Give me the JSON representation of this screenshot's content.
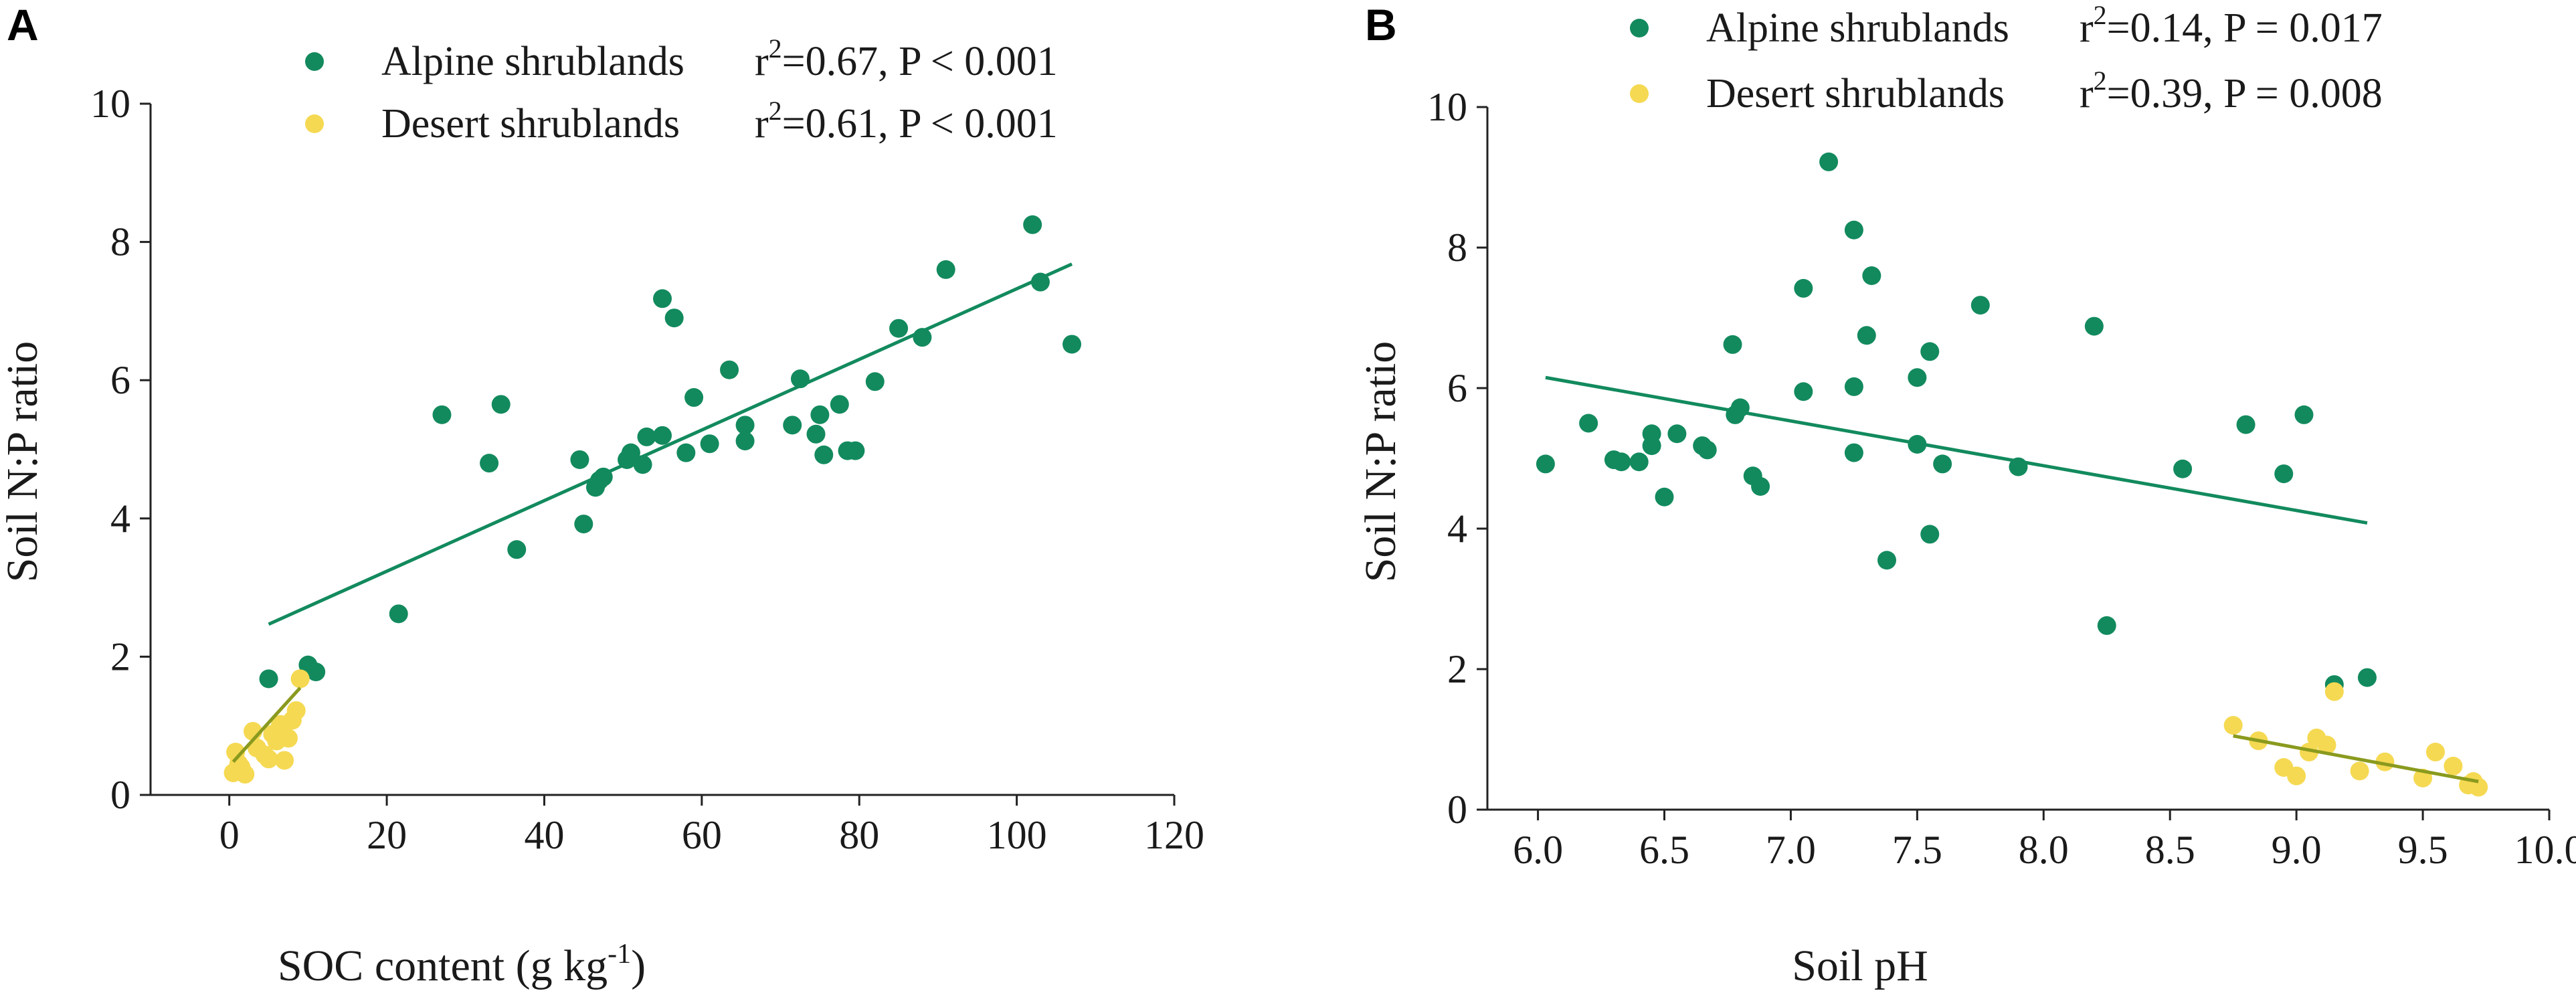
{
  "colors": {
    "alpine": "#128a5e",
    "desert": "#f5d952",
    "desert_fit": "#8a9a1e",
    "axis": "#222222"
  },
  "chart_data": [
    {
      "panel": "A",
      "type": "scatter",
      "xlabel": "SOC content (g kg",
      "xlabel_sup": "-1",
      "xlabel_suffix": ")",
      "ylabel": "Soil N:P ratio",
      "xlim": [
        -10,
        120
      ],
      "ylim": [
        0,
        10
      ],
      "xticks": [
        0,
        20,
        40,
        60,
        80,
        100,
        120
      ],
      "yticks": [
        0,
        2,
        4,
        6,
        8,
        10
      ],
      "x_tick_labels": [
        "0",
        "20",
        "40",
        "60",
        "80",
        "100",
        "120"
      ],
      "y_tick_labels": [
        "0",
        "2",
        "4",
        "6",
        "8",
        "10"
      ],
      "series": [
        {
          "name": "Alpine shrublands",
          "stat": "r²=0.67, P < 0.001",
          "stat_prefix": "r",
          "stat_sup": "2",
          "stat_rest": "=0.67, P < 0.001",
          "color_key": "alpine",
          "points": [
            [
              5,
              1.68
            ],
            [
              10,
              1.88
            ],
            [
              11,
              1.78
            ],
            [
              21.5,
              2.62
            ],
            [
              27,
              5.5
            ],
            [
              33,
              4.8
            ],
            [
              34.5,
              5.65
            ],
            [
              36.5,
              3.55
            ],
            [
              44.5,
              4.85
            ],
            [
              45,
              3.92
            ],
            [
              46.5,
              4.45
            ],
            [
              47,
              4.55
            ],
            [
              47.5,
              4.6
            ],
            [
              50.5,
              4.85
            ],
            [
              51,
              4.95
            ],
            [
              52.5,
              4.78
            ],
            [
              53,
              5.18
            ],
            [
              55,
              5.2
            ],
            [
              55,
              7.18
            ],
            [
              56.5,
              6.9
            ],
            [
              58,
              4.95
            ],
            [
              59,
              5.75
            ],
            [
              61,
              5.08
            ],
            [
              63.5,
              6.15
            ],
            [
              65.5,
              5.35
            ],
            [
              65.5,
              5.12
            ],
            [
              71.5,
              5.35
            ],
            [
              72.5,
              6.02
            ],
            [
              74.5,
              5.22
            ],
            [
              75,
              5.5
            ],
            [
              75.5,
              4.92
            ],
            [
              77.5,
              5.65
            ],
            [
              78.5,
              4.98
            ],
            [
              79.5,
              4.98
            ],
            [
              82,
              5.98
            ],
            [
              85,
              6.75
            ],
            [
              88,
              6.62
            ],
            [
              91,
              7.6
            ],
            [
              102,
              8.25
            ],
            [
              103,
              7.42
            ],
            [
              107,
              6.52
            ]
          ],
          "fit": [
            [
              5,
              2.47
            ],
            [
              107,
              7.68
            ]
          ]
        },
        {
          "name": "Desert shrublands",
          "stat": "r²=0.61, P < 0.001",
          "stat_prefix": "r",
          "stat_sup": "2",
          "stat_rest": "=0.61, P < 0.001",
          "color_key": "desert",
          "fit_color_key": "desert_fit",
          "points": [
            [
              0.5,
              0.32
            ],
            [
              0.8,
              0.62
            ],
            [
              1.2,
              0.45
            ],
            [
              1.5,
              0.4
            ],
            [
              2,
              0.3
            ],
            [
              3,
              0.92
            ],
            [
              3.5,
              0.68
            ],
            [
              4.5,
              0.58
            ],
            [
              5,
              0.52
            ],
            [
              5.5,
              0.88
            ],
            [
              6,
              0.78
            ],
            [
              6.5,
              1.02
            ],
            [
              7,
              0.5
            ],
            [
              7.5,
              0.82
            ],
            [
              8,
              1.08
            ],
            [
              8.5,
              1.22
            ],
            [
              9,
              1.68
            ]
          ],
          "fit": [
            [
              0.5,
              0.48
            ],
            [
              9,
              1.55
            ]
          ]
        }
      ]
    },
    {
      "panel": "B",
      "type": "scatter",
      "xlabel": "Soil pH",
      "ylabel": "Soil N:P ratio",
      "xlim": [
        5.8,
        10.0
      ],
      "ylim": [
        0,
        10
      ],
      "xticks": [
        6.0,
        6.5,
        7.0,
        7.5,
        8.0,
        8.5,
        9.0,
        9.5,
        10.0
      ],
      "yticks": [
        0,
        2,
        4,
        6,
        8,
        10
      ],
      "x_tick_labels": [
        "6.0",
        "6.5",
        "7.0",
        "7.5",
        "8.0",
        "8.5",
        "9.0",
        "9.5",
        "10.0"
      ],
      "y_tick_labels": [
        "0",
        "2",
        "4",
        "6",
        "8",
        "10"
      ],
      "series": [
        {
          "name": "Alpine shrublands",
          "stat": "r²=0.14, P = 0.017",
          "stat_prefix": "r",
          "stat_sup": "2",
          "stat_rest": "=0.14, P = 0.017",
          "color_key": "alpine",
          "points": [
            [
              6.03,
              4.92
            ],
            [
              6.2,
              5.5
            ],
            [
              6.3,
              4.98
            ],
            [
              6.33,
              4.95
            ],
            [
              6.4,
              4.95
            ],
            [
              6.45,
              5.35
            ],
            [
              6.45,
              5.18
            ],
            [
              6.5,
              4.45
            ],
            [
              6.55,
              5.35
            ],
            [
              6.65,
              5.18
            ],
            [
              6.67,
              5.12
            ],
            [
              6.77,
              6.62
            ],
            [
              6.78,
              5.62
            ],
            [
              6.8,
              5.72
            ],
            [
              6.85,
              4.75
            ],
            [
              6.88,
              4.6
            ],
            [
              7.05,
              7.42
            ],
            [
              7.05,
              5.95
            ],
            [
              7.15,
              9.22
            ],
            [
              7.25,
              8.25
            ],
            [
              7.25,
              6.02
            ],
            [
              7.25,
              5.08
            ],
            [
              7.3,
              6.75
            ],
            [
              7.32,
              7.6
            ],
            [
              7.38,
              3.55
            ],
            [
              7.5,
              6.15
            ],
            [
              7.5,
              5.2
            ],
            [
              7.55,
              6.52
            ],
            [
              7.55,
              3.92
            ],
            [
              7.6,
              4.92
            ],
            [
              7.75,
              7.18
            ],
            [
              7.9,
              4.88
            ],
            [
              8.2,
              6.88
            ],
            [
              8.25,
              2.62
            ],
            [
              8.55,
              4.85
            ],
            [
              8.8,
              5.48
            ],
            [
              8.95,
              4.78
            ],
            [
              9.03,
              5.62
            ],
            [
              9.15,
              1.78
            ],
            [
              9.28,
              1.88
            ]
          ],
          "fit": [
            [
              6.03,
              6.15
            ],
            [
              9.28,
              4.08
            ]
          ]
        },
        {
          "name": "Desert shrublands",
          "stat": "r²=0.39, P = 0.008",
          "stat_prefix": "r",
          "stat_sup": "2",
          "stat_rest": "=0.39, P = 0.008",
          "color_key": "desert",
          "fit_color_key": "desert_fit",
          "points": [
            [
              8.75,
              1.2
            ],
            [
              8.85,
              0.98
            ],
            [
              8.95,
              0.6
            ],
            [
              9.0,
              0.48
            ],
            [
              9.05,
              0.82
            ],
            [
              9.08,
              1.02
            ],
            [
              9.12,
              0.92
            ],
            [
              9.15,
              1.68
            ],
            [
              9.25,
              0.55
            ],
            [
              9.35,
              0.68
            ],
            [
              9.5,
              0.45
            ],
            [
              9.55,
              0.82
            ],
            [
              9.62,
              0.62
            ],
            [
              9.68,
              0.35
            ],
            [
              9.7,
              0.4
            ],
            [
              9.72,
              0.32
            ]
          ],
          "fit": [
            [
              8.75,
              1.05
            ],
            [
              9.72,
              0.4
            ]
          ]
        }
      ]
    }
  ]
}
